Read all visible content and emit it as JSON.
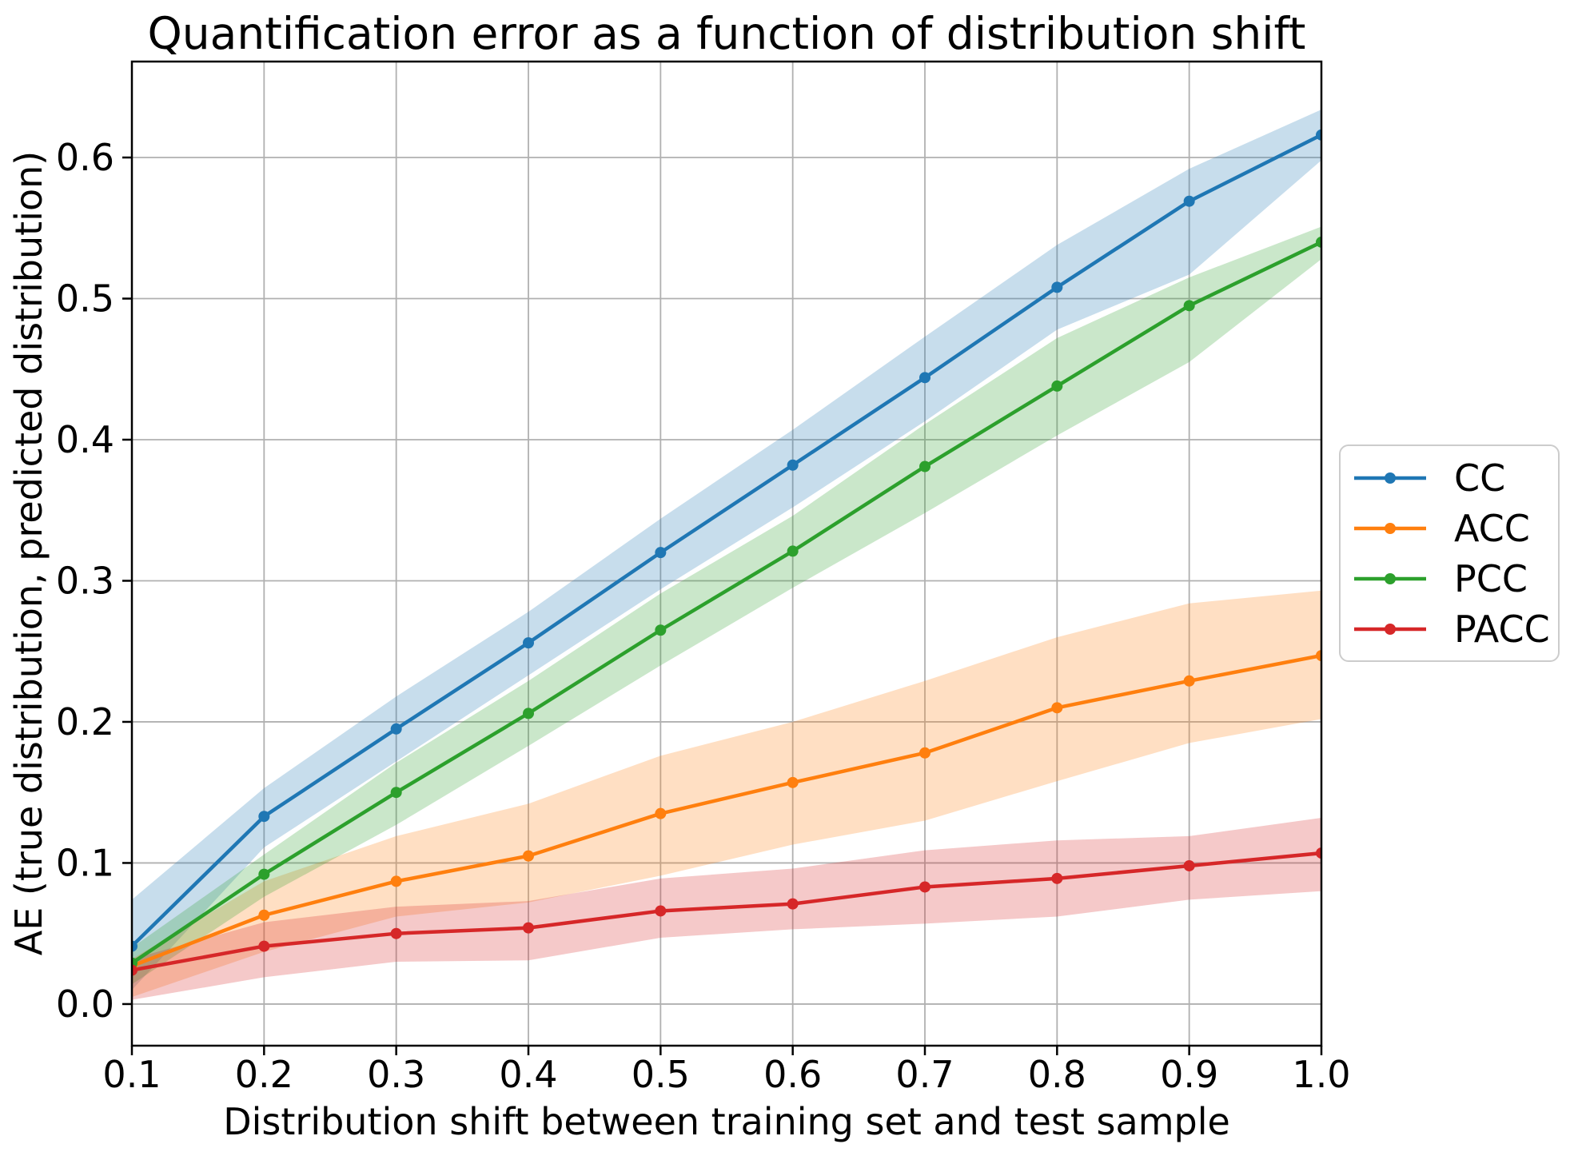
{
  "figure": {
    "background": "#ffffff"
  },
  "chart_data": {
    "type": "line",
    "title": "Quantification error as a function of distribution shift",
    "xlabel": "Distribution shift between training set and test sample",
    "ylabel": "AE (true distribution, predicted distribution)",
    "xlim": [
      0.1,
      1.0
    ],
    "ylim": [
      -0.0295,
      0.668
    ],
    "grid": true,
    "grid_color": "#b0b0b0",
    "spine_color": "#000000",
    "band_opacity": 0.25,
    "legend_position": "outside-right",
    "x": [
      0.1,
      0.2,
      0.3,
      0.4,
      0.5,
      0.6,
      0.7,
      0.8,
      0.9,
      1.0
    ],
    "x_tick_labels": [
      "0.1",
      "0.2",
      "0.3",
      "0.4",
      "0.5",
      "0.6",
      "0.7",
      "0.8",
      "0.9",
      "1.0"
    ],
    "y_ticks": [
      0.0,
      0.1,
      0.2,
      0.3,
      0.4,
      0.5,
      0.6
    ],
    "y_tick_labels": [
      "0.0",
      "0.1",
      "0.2",
      "0.3",
      "0.4",
      "0.5",
      "0.6"
    ],
    "series": [
      {
        "name": "CC",
        "color": "#1f77b4",
        "values": [
          0.041,
          0.133,
          0.195,
          0.256,
          0.32,
          0.382,
          0.444,
          0.508,
          0.569,
          0.616
        ],
        "band_low": [
          0.01,
          0.111,
          0.172,
          0.233,
          0.294,
          0.352,
          0.413,
          0.478,
          0.517,
          0.598
        ],
        "band_high": [
          0.074,
          0.153,
          0.218,
          0.278,
          0.344,
          0.407,
          0.473,
          0.538,
          0.592,
          0.634
        ]
      },
      {
        "name": "ACC",
        "color": "#ff7f0e",
        "values": [
          0.027,
          0.063,
          0.087,
          0.105,
          0.135,
          0.157,
          0.178,
          0.21,
          0.229,
          0.247
        ],
        "band_low": [
          0.005,
          0.037,
          0.062,
          0.072,
          0.091,
          0.113,
          0.13,
          0.158,
          0.185,
          0.202
        ],
        "band_high": [
          0.032,
          0.087,
          0.119,
          0.142,
          0.176,
          0.2,
          0.229,
          0.26,
          0.284,
          0.293
        ]
      },
      {
        "name": "PCC",
        "color": "#2ca02c",
        "values": [
          0.029,
          0.092,
          0.15,
          0.206,
          0.265,
          0.321,
          0.381,
          0.438,
          0.495,
          0.54
        ],
        "band_low": [
          0.014,
          0.076,
          0.127,
          0.183,
          0.24,
          0.295,
          0.348,
          0.403,
          0.455,
          0.528
        ],
        "band_high": [
          0.04,
          0.106,
          0.171,
          0.229,
          0.291,
          0.346,
          0.411,
          0.472,
          0.515,
          0.551
        ]
      },
      {
        "name": "PACC",
        "color": "#d62728",
        "values": [
          0.024,
          0.041,
          0.05,
          0.054,
          0.066,
          0.071,
          0.083,
          0.089,
          0.098,
          0.107
        ],
        "band_low": [
          0.003,
          0.019,
          0.03,
          0.031,
          0.047,
          0.053,
          0.057,
          0.062,
          0.074,
          0.08
        ],
        "band_high": [
          0.032,
          0.058,
          0.069,
          0.073,
          0.089,
          0.096,
          0.109,
          0.116,
          0.119,
          0.132
        ]
      }
    ]
  }
}
